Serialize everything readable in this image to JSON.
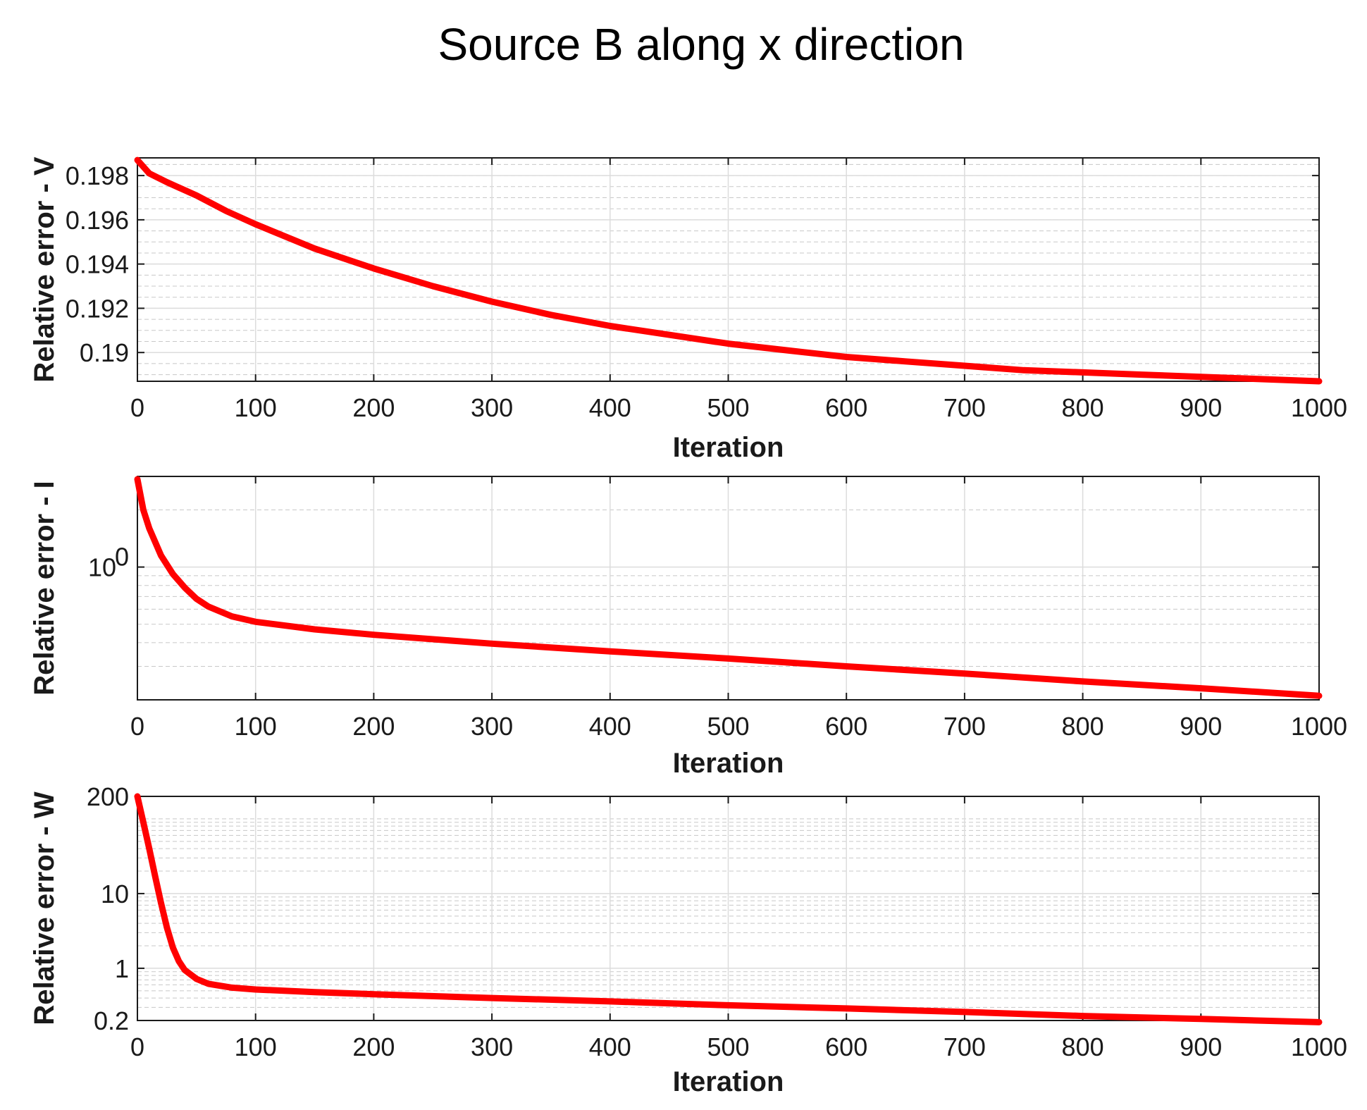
{
  "chart_data": {
    "title": "Source B along x direction",
    "color": "#ff0000",
    "panels": [
      {
        "type": "line",
        "name": "panel-v",
        "xlabel": "Iteration",
        "ylabel": "Relative error - V",
        "xlim": [
          0,
          1000
        ],
        "ylim": [
          0.1887,
          0.1988
        ],
        "yscale": "linear",
        "xticks": [
          "0",
          "100",
          "200",
          "300",
          "400",
          "500",
          "600",
          "700",
          "800",
          "900",
          "1000"
        ],
        "yticks": [
          {
            "value": 0.198,
            "label": "0.198"
          },
          {
            "value": 0.196,
            "label": "0.196"
          },
          {
            "value": 0.194,
            "label": "0.194"
          },
          {
            "value": 0.192,
            "label": "0.192"
          },
          {
            "value": 0.19,
            "label": "0.19"
          }
        ],
        "minor_step": 0.0005,
        "series": [
          {
            "x": [
              0,
              10,
              25,
              50,
              75,
              100,
              150,
              200,
              250,
              300,
              350,
              400,
              450,
              500,
              550,
              600,
              650,
              700,
              750,
              800,
              850,
              900,
              950,
              1000
            ],
            "values": [
              0.1987,
              0.1981,
              0.1977,
              0.1971,
              0.1964,
              0.1958,
              0.1947,
              0.1938,
              0.193,
              0.1923,
              0.1917,
              0.1912,
              0.1908,
              0.1904,
              0.1901,
              0.1898,
              0.1896,
              0.1894,
              0.1892,
              0.1891,
              0.189,
              0.1889,
              0.1888,
              0.1887
            ]
          }
        ]
      },
      {
        "type": "line",
        "name": "panel-i",
        "xlabel": "Iteration",
        "ylabel": "Relative error - I",
        "xlim": [
          0,
          1000
        ],
        "ylim": [
          0.2,
          3.0
        ],
        "yscale": "log",
        "xticks": [
          "0",
          "100",
          "200",
          "300",
          "400",
          "500",
          "600",
          "700",
          "800",
          "900",
          "1000"
        ],
        "yticks": [
          {
            "value": 1,
            "label": "10",
            "sup": "0"
          }
        ],
        "minor_values": [
          0.3,
          0.4,
          0.5,
          0.6,
          0.7,
          0.8,
          0.9,
          2,
          3
        ],
        "series": [
          {
            "x": [
              0,
              5,
              10,
              20,
              30,
              40,
              50,
              60,
              80,
              100,
              150,
              200,
              300,
              400,
              500,
              600,
              700,
              800,
              900,
              1000
            ],
            "values": [
              2.9,
              2.0,
              1.6,
              1.15,
              0.92,
              0.78,
              0.68,
              0.62,
              0.55,
              0.515,
              0.47,
              0.44,
              0.395,
              0.36,
              0.33,
              0.3,
              0.275,
              0.25,
              0.23,
              0.21
            ]
          }
        ]
      },
      {
        "type": "line",
        "name": "panel-w",
        "xlabel": "Iteration",
        "ylabel": "Relative error - W",
        "xlim": [
          0,
          1000
        ],
        "ylim": [
          0.2,
          200
        ],
        "yscale": "log",
        "xticks": [
          "0",
          "100",
          "200",
          "300",
          "400",
          "500",
          "600",
          "700",
          "800",
          "900",
          "1000"
        ],
        "yticks": [
          {
            "value": 200,
            "label": "200"
          },
          {
            "value": 10,
            "label": "10"
          },
          {
            "value": 1,
            "label": "1"
          },
          {
            "value": 0.2,
            "label": "0.2"
          }
        ],
        "minor_values": [
          0.3,
          0.4,
          0.5,
          0.6,
          0.7,
          0.8,
          0.9,
          2,
          3,
          4,
          5,
          6,
          7,
          8,
          9,
          20,
          30,
          40,
          50,
          60,
          70,
          80,
          90,
          100
        ],
        "series": [
          {
            "x": [
              0,
              5,
              10,
              15,
              20,
              25,
              30,
              35,
              40,
              50,
              60,
              80,
              100,
              150,
              200,
              300,
              400,
              500,
              600,
              700,
              800,
              900,
              1000
            ],
            "values": [
              200,
              90,
              40,
              17,
              7.5,
              3.5,
              1.9,
              1.25,
              0.95,
              0.72,
              0.62,
              0.55,
              0.52,
              0.48,
              0.45,
              0.4,
              0.36,
              0.32,
              0.29,
              0.26,
              0.23,
              0.21,
              0.19
            ]
          }
        ]
      }
    ]
  }
}
